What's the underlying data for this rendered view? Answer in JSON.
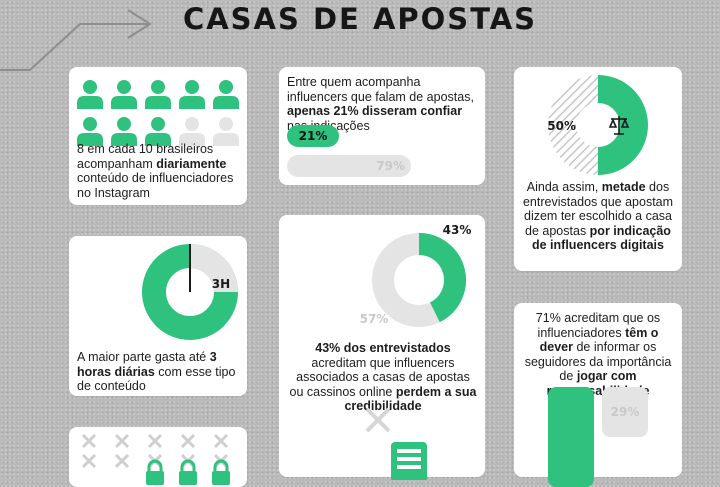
{
  "header": {
    "title": "CASAS DE APOSTAS"
  },
  "colors": {
    "accent": "#2ec27e",
    "muted": "#e4e4e4",
    "muted_text": "#cfcfcf",
    "dark": "#1b1b1b"
  },
  "card_followers": {
    "icon": "person-icon",
    "highlighted": 8,
    "total": 10,
    "text_a": "8 em cada 10 brasileiros acompanham ",
    "text_bold": "diariamente",
    "text_b": " conteúdo de influenciadores no Instagram"
  },
  "card_trust": {
    "text_a": "Entre quem acompanha influencers que falam de apostas, ",
    "text_bold": "apenas 21% disseram confiar",
    "text_b": " nas indicações",
    "trust_label": "21%",
    "trust_value": 21,
    "distrust_label": "79%",
    "distrust_value": 79
  },
  "card_choice": {
    "percent_label": "50%",
    "percent_value": 50,
    "icon": "scales-icon",
    "text_a": "Ainda assim, ",
    "text_bold1": "metade",
    "text_b": " dos entrevistados que apostam dizem ter escolhido a casa de apostas ",
    "text_bold2": "por indicação de influencers digitais"
  },
  "card_hours": {
    "label": "3H",
    "hours": 3,
    "text_a": "A maior parte gasta até ",
    "text_bold": "3 horas diárias",
    "text_b": " com esse tipo de conteúdo"
  },
  "card_credibility": {
    "yes_label": "43%",
    "yes_value": 43,
    "no_label": "57%",
    "no_value": 57,
    "text_bold1": "43% dos entrevistados",
    "text_a": " acreditam que influencers associados a casas de apostas ou cassinos online ",
    "text_bold2": "perdem a sua credibilidade",
    "icons": [
      "close-icon",
      "document-icon"
    ]
  },
  "card_duty": {
    "text_a": "71% acreditam que os influenciadores ",
    "text_bold1": "têm o dever",
    "text_b": " de informar os seguidores da importância de ",
    "text_bold2": "jogar com responsabilidade",
    "yes_value": 71,
    "no_label": "29%",
    "no_value": 29
  },
  "card_bottom": {
    "icons": [
      "close-icon",
      "lock-icon"
    ]
  }
}
